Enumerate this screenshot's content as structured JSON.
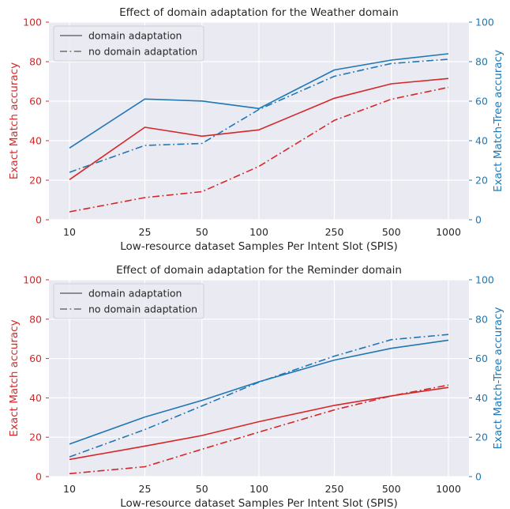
{
  "chart_data": [
    {
      "type": "line",
      "title": "Effect of domain adaptation for the Weather domain",
      "xlabel": "Low-resource dataset Samples Per Intent Slot (SPIS)",
      "ylabel_left": "Exact Match accuracy",
      "ylabel_right": "Exact Match-Tree accuracy",
      "x_scale": "log",
      "categories": [
        "10",
        "25",
        "50",
        "100",
        "250",
        "500",
        "1000"
      ],
      "x": [
        10,
        25,
        50,
        100,
        250,
        500,
        1000
      ],
      "ylim_left": [
        0,
        100
      ],
      "ylim_right": [
        0,
        100
      ],
      "yticks": [
        "0",
        "20",
        "40",
        "60",
        "80",
        "100"
      ],
      "grid": true,
      "legend_position": "top-left",
      "legend": [
        {
          "label": "domain adaptation",
          "style": "solid"
        },
        {
          "label": "no domain adaptation",
          "style": "dashdot"
        }
      ],
      "colors": {
        "left_axis": "#d62728",
        "right_axis": "#1f77b4",
        "legend_line": "#6e6e6e"
      },
      "series": [
        {
          "axis": "left",
          "color": "#d62728",
          "style": "solid",
          "values": [
            20.3,
            46.8,
            42.3,
            45.5,
            61.5,
            68.8,
            71.5
          ]
        },
        {
          "axis": "left",
          "color": "#d62728",
          "style": "dashdot",
          "values": [
            4.0,
            11.2,
            14.2,
            27.0,
            50.3,
            61.0,
            67.0
          ]
        },
        {
          "axis": "right",
          "color": "#1f77b4",
          "style": "solid",
          "values": [
            36.3,
            61.1,
            60.1,
            56.3,
            75.8,
            80.8,
            84.0
          ]
        },
        {
          "axis": "right",
          "color": "#1f77b4",
          "style": "dashdot",
          "values": [
            24.0,
            37.6,
            38.6,
            55.8,
            72.6,
            79.1,
            81.2
          ]
        }
      ]
    },
    {
      "type": "line",
      "title": "Effect of domain adaptation for the Reminder domain",
      "xlabel": "Low-resource dataset Samples Per Intent Slot (SPIS)",
      "ylabel_left": "Exact Match accuracy",
      "ylabel_right": "Exact Match-Tree accuracy",
      "x_scale": "log",
      "categories": [
        "10",
        "25",
        "50",
        "100",
        "250",
        "500",
        "1000"
      ],
      "x": [
        10,
        25,
        50,
        100,
        250,
        500,
        1000
      ],
      "ylim_left": [
        0,
        100
      ],
      "ylim_right": [
        0,
        100
      ],
      "yticks": [
        "0",
        "20",
        "40",
        "60",
        "80",
        "100"
      ],
      "grid": true,
      "legend_position": "top-left",
      "legend": [
        {
          "label": "domain adaptation",
          "style": "solid"
        },
        {
          "label": "no domain adaptation",
          "style": "dashdot"
        }
      ],
      "colors": {
        "left_axis": "#d62728",
        "right_axis": "#1f77b4",
        "legend_line": "#6e6e6e"
      },
      "series": [
        {
          "axis": "left",
          "color": "#d62728",
          "style": "solid",
          "values": [
            8.7,
            15.5,
            20.9,
            27.9,
            36.2,
            41.0,
            45.3
          ]
        },
        {
          "axis": "left",
          "color": "#d62728",
          "style": "dashdot",
          "values": [
            1.5,
            5.0,
            13.9,
            22.6,
            33.9,
            41.0,
            46.5
          ]
        },
        {
          "axis": "right",
          "color": "#1f77b4",
          "style": "solid",
          "values": [
            16.5,
            30.3,
            38.7,
            48.2,
            59.2,
            65.2,
            69.3
          ]
        },
        {
          "axis": "right",
          "color": "#1f77b4",
          "style": "dashdot",
          "values": [
            10.0,
            23.9,
            35.9,
            48.0,
            61.2,
            69.6,
            72.2
          ]
        }
      ]
    }
  ]
}
